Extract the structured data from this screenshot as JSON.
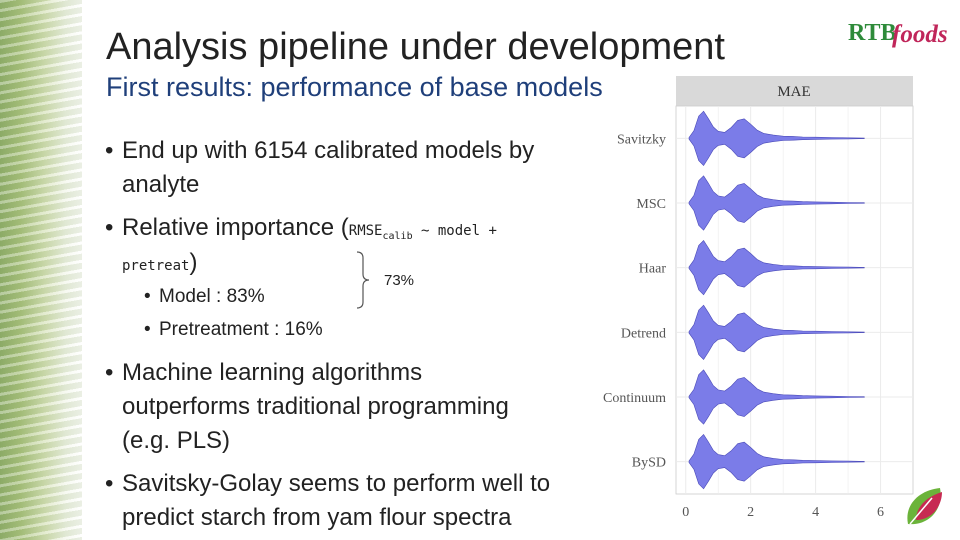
{
  "slide": {
    "title": "Analysis pipeline under development",
    "subtitle": "First results: performance of base models",
    "bullets": [
      {
        "line1": "End up with 6154 calibrated models by",
        "line2": "analyte"
      },
      {
        "prefix": "Relative importance (",
        "code_a": "RMSE",
        "code_sub": "calib",
        "code_b": " ~ model +",
        "code_c": "pretreat",
        "suffix": ")"
      },
      {
        "line1": "Machine learning algorithms",
        "line2": "outperforms traditional programming",
        "line3": "(e.g. PLS)"
      },
      {
        "line1": "Savitsky-Golay seems to perform well to",
        "line2": "predict starch from yam flour spectra"
      }
    ],
    "sub_bullets": [
      "Model : 83%",
      "Pretreatment : 16%"
    ],
    "brace_label": "73%",
    "logo_text": {
      "part1": "RTB",
      "part2": "foods"
    },
    "bullet_char": "•"
  },
  "chart_data": {
    "type": "violin",
    "panel_title": "MAE",
    "categories": [
      "Savitzky",
      "MSC",
      "Haar",
      "Detrend",
      "Continuum",
      "BySD"
    ],
    "x_ticks": [
      "0",
      "2",
      "4",
      "6"
    ],
    "xlim": [
      -0.3,
      7.0
    ],
    "grid": true,
    "fill_color": "#7b7ce8",
    "distribution_profile": {
      "x": [
        0.1,
        0.25,
        0.4,
        0.55,
        0.7,
        0.85,
        1.0,
        1.2,
        1.4,
        1.6,
        1.8,
        2.0,
        2.2,
        2.4,
        2.7,
        3.0,
        3.3,
        3.6,
        4.0,
        4.5,
        5.0,
        5.5
      ],
      "density": [
        0.03,
        0.28,
        0.82,
        1.0,
        0.72,
        0.42,
        0.26,
        0.22,
        0.4,
        0.66,
        0.72,
        0.52,
        0.3,
        0.18,
        0.12,
        0.08,
        0.07,
        0.05,
        0.04,
        0.03,
        0.02,
        0.01
      ]
    }
  }
}
